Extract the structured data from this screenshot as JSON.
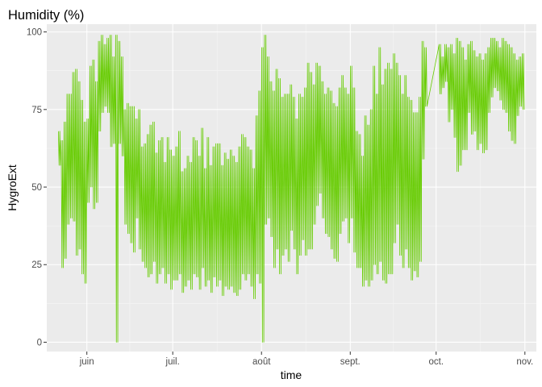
{
  "chart_data": {
    "type": "line",
    "title": "Humidity (%)",
    "xlabel": "time",
    "ylabel": "HygroExt",
    "x_range": [
      "2019-05-18",
      "2019-11-05"
    ],
    "ylim": [
      -3,
      102.5
    ],
    "y_ticks": [
      0,
      25,
      50,
      75,
      100
    ],
    "y_tick_labels": [
      "0",
      "25",
      "50",
      "75",
      "100"
    ],
    "x_ticks": [
      "2019-06-01",
      "2019-07-01",
      "2019-08-01",
      "2019-09-01",
      "2019-10-01",
      "2019-11-01"
    ],
    "x_tick_labels": [
      "juin",
      "juil.",
      "août",
      "sept.",
      "oct.",
      "nov."
    ],
    "grid": true,
    "background": "#EBEBEB",
    "line_color": "#66CC00",
    "series": [
      {
        "x": [
          "2019-05-22",
          "2019-05-23",
          "2019-05-24",
          "2019-05-25",
          "2019-05-26",
          "2019-05-27",
          "2019-05-28",
          "2019-05-29",
          "2019-05-30",
          "2019-05-31",
          "2019-06-01",
          "2019-06-02",
          "2019-06-03",
          "2019-06-04",
          "2019-06-05",
          "2019-06-06",
          "2019-06-07",
          "2019-06-08",
          "2019-06-09",
          "2019-06-10",
          "2019-06-11",
          "2019-06-12",
          "2019-06-13",
          "2019-06-14",
          "2019-06-15",
          "2019-06-16",
          "2019-06-17",
          "2019-06-18",
          "2019-06-19",
          "2019-06-20",
          "2019-06-21",
          "2019-06-22",
          "2019-06-23",
          "2019-06-24",
          "2019-06-25",
          "2019-06-26",
          "2019-06-27",
          "2019-06-28",
          "2019-06-29",
          "2019-06-30",
          "2019-07-01",
          "2019-07-02",
          "2019-07-03",
          "2019-07-04",
          "2019-07-05",
          "2019-07-06",
          "2019-07-07",
          "2019-07-08",
          "2019-07-09",
          "2019-07-10",
          "2019-07-11",
          "2019-07-12",
          "2019-07-13",
          "2019-07-14",
          "2019-07-15",
          "2019-07-16",
          "2019-07-17",
          "2019-07-18",
          "2019-07-19",
          "2019-07-20",
          "2019-07-21",
          "2019-07-22",
          "2019-07-23",
          "2019-07-24",
          "2019-07-25",
          "2019-07-26",
          "2019-07-27",
          "2019-07-28",
          "2019-07-29",
          "2019-07-30",
          "2019-07-31",
          "2019-08-01",
          "2019-08-02",
          "2019-08-03",
          "2019-08-04",
          "2019-08-05",
          "2019-08-06",
          "2019-08-07",
          "2019-08-08",
          "2019-08-09",
          "2019-08-10",
          "2019-08-11",
          "2019-08-12",
          "2019-08-13",
          "2019-08-14",
          "2019-08-15",
          "2019-08-16",
          "2019-08-17",
          "2019-08-18",
          "2019-08-19",
          "2019-08-20",
          "2019-08-21",
          "2019-08-22",
          "2019-08-23",
          "2019-08-24",
          "2019-08-25",
          "2019-08-26",
          "2019-08-27",
          "2019-08-28",
          "2019-08-29",
          "2019-08-30",
          "2019-08-31",
          "2019-09-01",
          "2019-09-02",
          "2019-09-03",
          "2019-09-04",
          "2019-09-05",
          "2019-09-06",
          "2019-09-07",
          "2019-09-08",
          "2019-09-09",
          "2019-09-10",
          "2019-09-11",
          "2019-09-12",
          "2019-09-13",
          "2019-09-14",
          "2019-09-15",
          "2019-09-16",
          "2019-09-17",
          "2019-09-18",
          "2019-09-19",
          "2019-09-20",
          "2019-09-21",
          "2019-09-22",
          "2019-09-23",
          "2019-09-24",
          "2019-09-25",
          "2019-09-26",
          "2019-09-27",
          "2019-10-02",
          "2019-10-03",
          "2019-10-04",
          "2019-10-05",
          "2019-10-06",
          "2019-10-07",
          "2019-10-08",
          "2019-10-09",
          "2019-10-10",
          "2019-10-11",
          "2019-10-12",
          "2019-10-13",
          "2019-10-14",
          "2019-10-15",
          "2019-10-16",
          "2019-10-17",
          "2019-10-18",
          "2019-10-19",
          "2019-10-20",
          "2019-10-21",
          "2019-10-22",
          "2019-10-23",
          "2019-10-24",
          "2019-10-25",
          "2019-10-26",
          "2019-10-27",
          "2019-10-28",
          "2019-10-29",
          "2019-10-30",
          "2019-10-31"
        ],
        "min": [
          57,
          24,
          27,
          38,
          40,
          39,
          28,
          30,
          22,
          19,
          45,
          50,
          43,
          45,
          68,
          74,
          76,
          74,
          63,
          64,
          0,
          64,
          60,
          38,
          35,
          32,
          29,
          40,
          30,
          26,
          24,
          21,
          22,
          26,
          19,
          22,
          24,
          19,
          22,
          17,
          20,
          20,
          22,
          16,
          18,
          20,
          17,
          22,
          21,
          17,
          24,
          18,
          20,
          16,
          21,
          18,
          20,
          15,
          18,
          17,
          18,
          16,
          15,
          17,
          22,
          20,
          22,
          18,
          14,
          22,
          19,
          0,
          38,
          40,
          34,
          24,
          30,
          22,
          28,
          30,
          26,
          36,
          30,
          22,
          28,
          33,
          28,
          30,
          30,
          38,
          44,
          48,
          40,
          35,
          34,
          30,
          27,
          26,
          35,
          39,
          40,
          32,
          40,
          29,
          24,
          24,
          18,
          20,
          18,
          20,
          25,
          22,
          26,
          20,
          19,
          22,
          22,
          32,
          38,
          28,
          24,
          30,
          24,
          20,
          23,
          21,
          26,
          59,
          76,
          80,
          82,
          84,
          71,
          75,
          66,
          55,
          57,
          62,
          62,
          74,
          67,
          68,
          62,
          64,
          61,
          62,
          74,
          79,
          82,
          81,
          78,
          75,
          74,
          68,
          65,
          64,
          73,
          76,
          75,
          72
        ],
        "max": [
          68,
          65,
          71,
          80,
          80,
          87,
          88,
          84,
          78,
          71,
          72,
          89,
          91,
          84,
          97,
          99,
          96,
          98,
          99,
          92,
          99,
          97,
          92,
          75,
          77,
          76,
          76,
          72,
          75,
          63,
          64,
          67,
          70,
          71,
          61,
          65,
          66,
          58,
          66,
          62,
          60,
          63,
          68,
          55,
          56,
          60,
          58,
          66,
          65,
          60,
          69,
          56,
          66,
          57,
          63,
          64,
          64,
          57,
          61,
          59,
          62,
          60,
          58,
          63,
          67,
          66,
          63,
          62,
          56,
          73,
          81,
          95,
          99,
          92,
          84,
          81,
          88,
          85,
          79,
          80,
          80,
          83,
          79,
          72,
          80,
          79,
          82,
          90,
          87,
          83,
          90,
          89,
          84,
          80,
          82,
          81,
          77,
          76,
          82,
          86,
          82,
          80,
          89,
          82,
          68,
          67,
          60,
          73,
          70,
          75,
          89,
          80,
          95,
          83,
          88,
          90,
          88,
          93,
          90,
          86,
          80,
          86,
          79,
          78,
          74,
          74,
          79,
          97,
          95,
          96,
          92,
          96,
          95,
          96,
          93,
          98,
          97,
          95,
          91,
          96,
          97,
          94,
          92,
          93,
          91,
          93,
          95,
          98,
          98,
          97,
          95,
          98,
          97,
          96,
          95,
          93,
          91,
          92,
          93,
          90
        ]
      }
    ]
  }
}
